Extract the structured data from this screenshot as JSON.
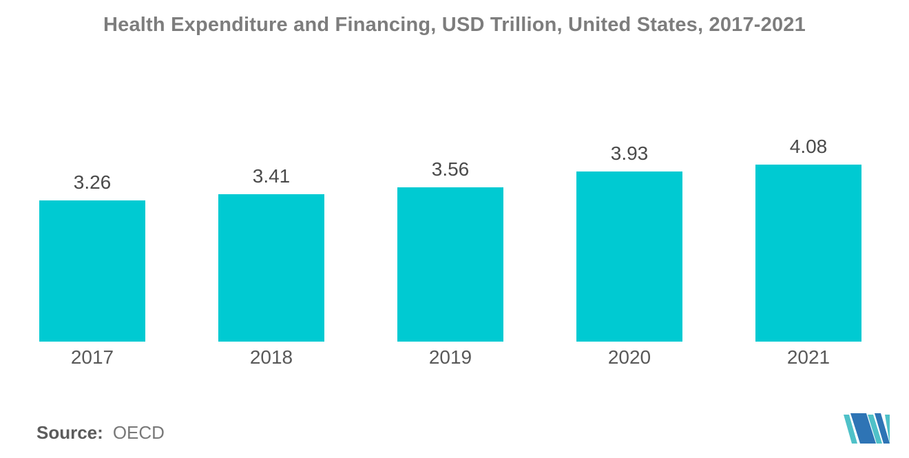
{
  "title": "Health Expenditure and Financing, USD Trillion, United States, 2017-2021",
  "source": {
    "label": "Source:",
    "value": "OECD"
  },
  "logo": {
    "name": "mordor-intelligence-logo"
  },
  "colors": {
    "bar_fill": "#00CAD2",
    "title_text": "#7d7d7d",
    "value_label_text": "#4a4a4a",
    "year_label_text": "#595959",
    "logo_blue": "#2E74B5",
    "logo_teal": "#4FC1C8",
    "background": "#ffffff"
  },
  "chart_data": {
    "type": "bar",
    "title": "Health Expenditure and Financing, USD Trillion, United States, 2017-2021",
    "categories": [
      "2017",
      "2018",
      "2019",
      "2020",
      "2021"
    ],
    "values": [
      3.26,
      3.41,
      3.56,
      3.93,
      4.08
    ],
    "value_labels": [
      "3.26",
      "3.41",
      "3.56",
      "3.93",
      "4.08"
    ],
    "xlabel": "",
    "ylabel": "",
    "ylim": [
      0,
      4.2
    ],
    "grid": false,
    "legend": "none",
    "axes_visible": false,
    "bar_color": "#00CAD2"
  }
}
